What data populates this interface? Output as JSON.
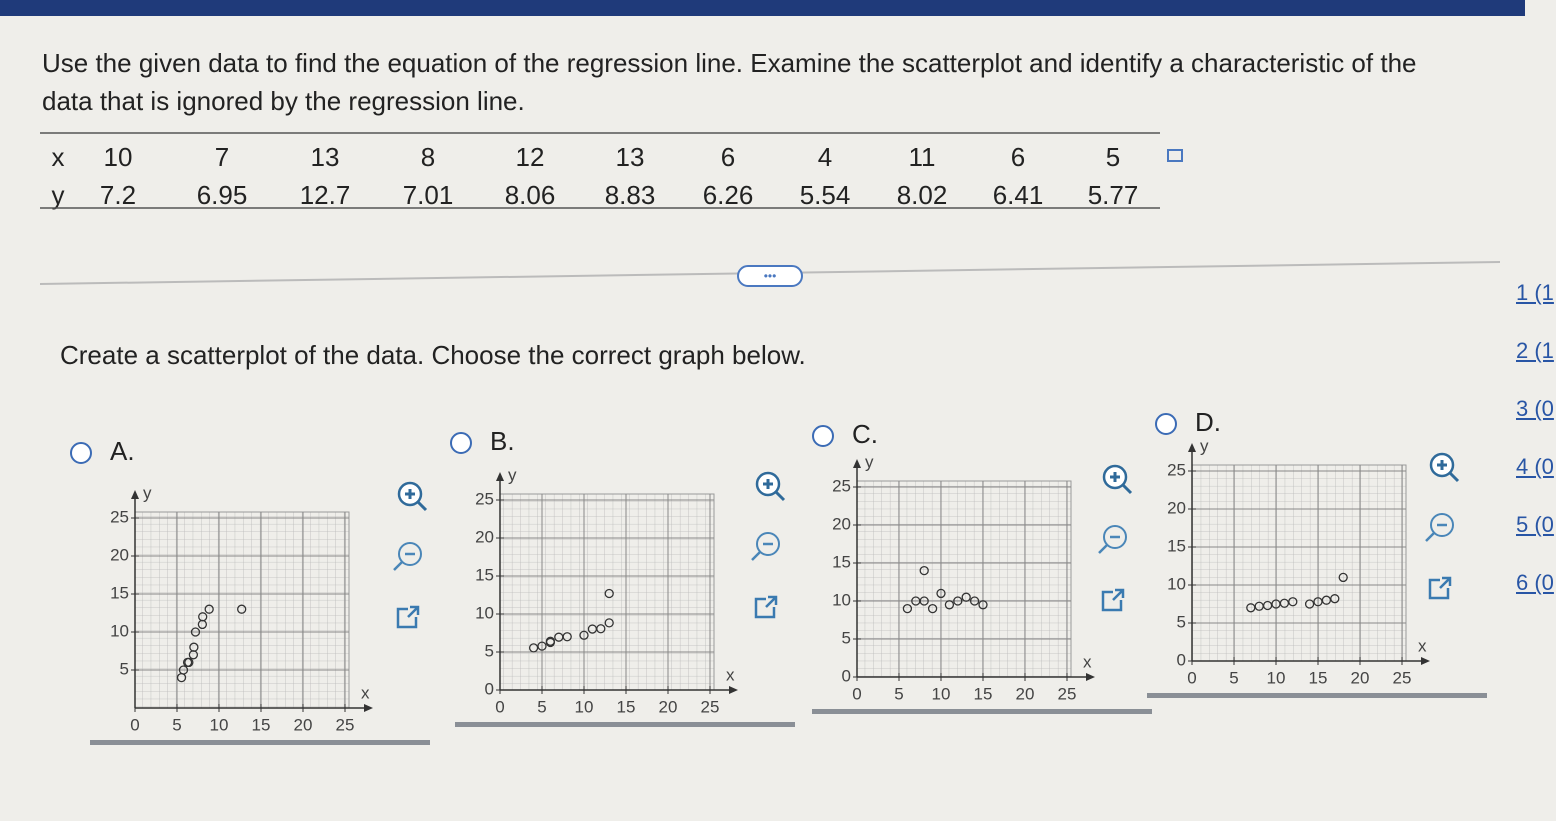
{
  "question": "Use the given data to find the equation of the regression line. Examine the scatterplot and identify a characteristic of the data that is ignored by the regression line.",
  "table": {
    "row_labels": [
      "x",
      "y"
    ],
    "x": [
      10,
      7,
      13,
      8,
      12,
      13,
      6,
      4,
      11,
      6,
      5
    ],
    "y": [
      7.2,
      6.95,
      12.7,
      7.01,
      8.06,
      8.83,
      6.26,
      5.54,
      8.02,
      6.41,
      5.77
    ]
  },
  "more_button": "•••",
  "prompt": "Create a scatterplot of the data. Choose the correct graph below.",
  "options": [
    {
      "label": "A.",
      "chart_data": {
        "type": "scatter",
        "x_label": "x",
        "y_label": "y",
        "xlim": [
          0,
          25
        ],
        "ylim": [
          0,
          25
        ],
        "xticks": [
          0,
          5,
          10,
          15,
          20,
          25
        ],
        "yticks": [
          5,
          10,
          15,
          20,
          25
        ],
        "grid": true,
        "x": [
          7.2,
          6.95,
          12.7,
          7.01,
          8.06,
          8.83,
          6.26,
          5.54,
          8.02,
          6.41,
          5.77
        ],
        "y": [
          10,
          7,
          13,
          8,
          12,
          13,
          6,
          4,
          11,
          6,
          5
        ]
      }
    },
    {
      "label": "B.",
      "chart_data": {
        "type": "scatter",
        "x_label": "x",
        "y_label": "y",
        "xlim": [
          0,
          25
        ],
        "ylim": [
          0,
          25
        ],
        "xticks": [
          0,
          5,
          10,
          15,
          20,
          25
        ],
        "yticks": [
          0,
          5,
          10,
          15,
          20,
          25
        ],
        "grid": true,
        "x": [
          10,
          7,
          13,
          8,
          12,
          13,
          6,
          4,
          11,
          6,
          5
        ],
        "y": [
          7.2,
          6.95,
          12.7,
          7.01,
          8.06,
          8.83,
          6.26,
          5.54,
          8.02,
          6.41,
          5.77
        ]
      }
    },
    {
      "label": "C.",
      "chart_data": {
        "type": "scatter",
        "x_label": "x",
        "y_label": "y",
        "xlim": [
          0,
          25
        ],
        "ylim": [
          0,
          25
        ],
        "xticks": [
          0,
          5,
          10,
          15,
          20,
          25
        ],
        "yticks": [
          0,
          5,
          10,
          15,
          20,
          25
        ],
        "grid": true,
        "x": [
          6,
          7,
          8,
          8,
          9,
          10,
          11,
          12,
          13,
          14,
          15
        ],
        "y": [
          9,
          10,
          14,
          10,
          9,
          11,
          9.5,
          10,
          10.5,
          10,
          9.5
        ]
      }
    },
    {
      "label": "D.",
      "chart_data": {
        "type": "scatter",
        "x_label": "x",
        "y_label": "y",
        "xlim": [
          0,
          25
        ],
        "ylim": [
          0,
          25
        ],
        "xticks": [
          0,
          5,
          10,
          15,
          20,
          25
        ],
        "yticks": [
          0,
          5,
          10,
          15,
          20,
          25
        ],
        "grid": true,
        "x": [
          7,
          8,
          9,
          10,
          11,
          12,
          14,
          15,
          16,
          17,
          18
        ],
        "y": [
          7,
          7.2,
          7.3,
          7.5,
          7.6,
          7.8,
          7.5,
          7.8,
          8,
          8.2,
          11
        ]
      }
    }
  ],
  "sidebar": [
    "1 (1",
    "2 (1",
    "3 (0",
    "4 (0",
    "5 (0",
    "6 (0"
  ]
}
